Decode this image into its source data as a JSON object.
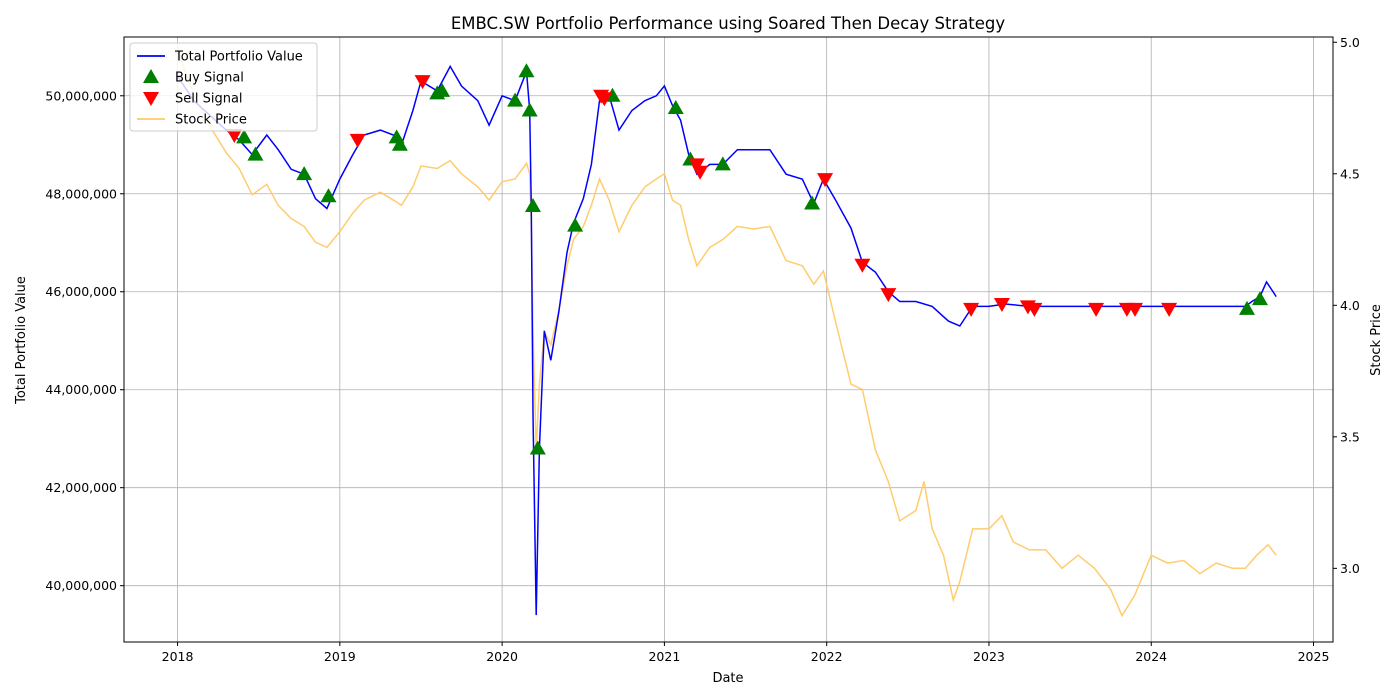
{
  "chart_data": {
    "type": "line",
    "title": "EMBC.SW Portfolio Performance using Soared Then Decay Strategy",
    "xlabel": "Date",
    "ylabel": "Total Portfolio Value",
    "ylabel_right": "Stock Price",
    "grid": true,
    "legend_position": "top-left",
    "xlim": [
      2017.67,
      2025.12
    ],
    "ylim": [
      38850000,
      51200000
    ],
    "ylim_right": [
      2.72,
      5.02
    ],
    "x_ticks": [
      2018,
      2019,
      2020,
      2021,
      2022,
      2023,
      2024,
      2025
    ],
    "x_tick_labels": [
      "2018",
      "2019",
      "2020",
      "2021",
      "2022",
      "2023",
      "2024",
      "2025"
    ],
    "y_ticks": [
      40000000,
      42000000,
      44000000,
      46000000,
      48000000,
      50000000
    ],
    "y_tick_labels": [
      "40,000,000",
      "42,000,000",
      "44,000,000",
      "46,000,000",
      "48,000,000",
      "50,000,000"
    ],
    "y_right_ticks": [
      3.0,
      3.5,
      4.0,
      4.5,
      5.0
    ],
    "y_right_tick_labels": [
      "3.0",
      "3.5",
      "4.0",
      "4.5",
      "5.0"
    ],
    "series": [
      {
        "name": "Total Portfolio Value",
        "color": "#0000ff",
        "axis": "left",
        "points": [
          [
            2018.0,
            50400000
          ],
          [
            2018.1,
            49900000
          ],
          [
            2018.2,
            49600000
          ],
          [
            2018.3,
            49300000
          ],
          [
            2018.38,
            49100000
          ],
          [
            2018.46,
            48800000
          ],
          [
            2018.55,
            49200000
          ],
          [
            2018.62,
            48900000
          ],
          [
            2018.7,
            48500000
          ],
          [
            2018.78,
            48400000
          ],
          [
            2018.85,
            47900000
          ],
          [
            2018.92,
            47700000
          ],
          [
            2019.0,
            48300000
          ],
          [
            2019.08,
            48800000
          ],
          [
            2019.15,
            49200000
          ],
          [
            2019.25,
            49300000
          ],
          [
            2019.33,
            49200000
          ],
          [
            2019.38,
            49000000
          ],
          [
            2019.45,
            49700000
          ],
          [
            2019.5,
            50300000
          ],
          [
            2019.6,
            50100000
          ],
          [
            2019.68,
            50600000
          ],
          [
            2019.75,
            50200000
          ],
          [
            2019.85,
            49900000
          ],
          [
            2019.92,
            49400000
          ],
          [
            2020.0,
            50000000
          ],
          [
            2020.08,
            49900000
          ],
          [
            2020.15,
            50500000
          ],
          [
            2020.17,
            49700000
          ],
          [
            2020.18,
            47700000
          ],
          [
            2020.19,
            43500000
          ],
          [
            2020.21,
            39400000
          ],
          [
            2020.23,
            42800000
          ],
          [
            2020.26,
            45200000
          ],
          [
            2020.3,
            44600000
          ],
          [
            2020.35,
            45600000
          ],
          [
            2020.4,
            46800000
          ],
          [
            2020.44,
            47400000
          ],
          [
            2020.5,
            47900000
          ],
          [
            2020.55,
            48600000
          ],
          [
            2020.6,
            49900000
          ],
          [
            2020.66,
            50000000
          ],
          [
            2020.72,
            49300000
          ],
          [
            2020.8,
            49700000
          ],
          [
            2020.88,
            49900000
          ],
          [
            2020.95,
            50000000
          ],
          [
            2021.0,
            50200000
          ],
          [
            2021.05,
            49800000
          ],
          [
            2021.1,
            49500000
          ],
          [
            2021.15,
            48800000
          ],
          [
            2021.2,
            48400000
          ],
          [
            2021.28,
            48600000
          ],
          [
            2021.36,
            48600000
          ],
          [
            2021.45,
            48900000
          ],
          [
            2021.55,
            48900000
          ],
          [
            2021.65,
            48900000
          ],
          [
            2021.75,
            48400000
          ],
          [
            2021.85,
            48300000
          ],
          [
            2021.92,
            47800000
          ],
          [
            2021.98,
            48300000
          ],
          [
            2022.05,
            47900000
          ],
          [
            2022.15,
            47300000
          ],
          [
            2022.22,
            46600000
          ],
          [
            2022.3,
            46400000
          ],
          [
            2022.38,
            46000000
          ],
          [
            2022.45,
            45800000
          ],
          [
            2022.55,
            45800000
          ],
          [
            2022.65,
            45700000
          ],
          [
            2022.75,
            45400000
          ],
          [
            2022.82,
            45300000
          ],
          [
            2022.9,
            45700000
          ],
          [
            2023.0,
            45700000
          ],
          [
            2023.1,
            45750000
          ],
          [
            2023.25,
            45700000
          ],
          [
            2023.5,
            45700000
          ],
          [
            2023.75,
            45700000
          ],
          [
            2024.0,
            45700000
          ],
          [
            2024.25,
            45700000
          ],
          [
            2024.5,
            45700000
          ],
          [
            2024.58,
            45700000
          ],
          [
            2024.62,
            45800000
          ],
          [
            2024.67,
            45900000
          ],
          [
            2024.71,
            46200000
          ],
          [
            2024.75,
            46000000
          ],
          [
            2024.77,
            45900000
          ]
        ]
      },
      {
        "name": "Stock Price",
        "color": "#ffc966",
        "axis": "right",
        "points": [
          [
            2018.0,
            4.97
          ],
          [
            2018.1,
            4.8
          ],
          [
            2018.2,
            4.68
          ],
          [
            2018.3,
            4.58
          ],
          [
            2018.38,
            4.52
          ],
          [
            2018.46,
            4.42
          ],
          [
            2018.55,
            4.46
          ],
          [
            2018.62,
            4.38
          ],
          [
            2018.7,
            4.33
          ],
          [
            2018.78,
            4.3
          ],
          [
            2018.85,
            4.24
          ],
          [
            2018.92,
            4.22
          ],
          [
            2019.0,
            4.28
          ],
          [
            2019.08,
            4.35
          ],
          [
            2019.15,
            4.4
          ],
          [
            2019.25,
            4.43
          ],
          [
            2019.33,
            4.4
          ],
          [
            2019.38,
            4.38
          ],
          [
            2019.45,
            4.45
          ],
          [
            2019.5,
            4.53
          ],
          [
            2019.6,
            4.52
          ],
          [
            2019.68,
            4.55
          ],
          [
            2019.75,
            4.5
          ],
          [
            2019.85,
            4.45
          ],
          [
            2019.92,
            4.4
          ],
          [
            2020.0,
            4.47
          ],
          [
            2020.08,
            4.48
          ],
          [
            2020.15,
            4.54
          ],
          [
            2020.17,
            4.5
          ],
          [
            2020.18,
            4.3
          ],
          [
            2020.19,
            3.9
          ],
          [
            2020.21,
            3.45
          ],
          [
            2020.23,
            3.7
          ],
          [
            2020.26,
            3.9
          ],
          [
            2020.3,
            3.85
          ],
          [
            2020.35,
            3.98
          ],
          [
            2020.4,
            4.15
          ],
          [
            2020.44,
            4.25
          ],
          [
            2020.5,
            4.3
          ],
          [
            2020.55,
            4.38
          ],
          [
            2020.6,
            4.48
          ],
          [
            2020.66,
            4.4
          ],
          [
            2020.72,
            4.28
          ],
          [
            2020.8,
            4.38
          ],
          [
            2020.88,
            4.45
          ],
          [
            2020.95,
            4.48
          ],
          [
            2021.0,
            4.5
          ],
          [
            2021.05,
            4.4
          ],
          [
            2021.1,
            4.38
          ],
          [
            2021.15,
            4.25
          ],
          [
            2021.2,
            4.15
          ],
          [
            2021.28,
            4.22
          ],
          [
            2021.36,
            4.25
          ],
          [
            2021.45,
            4.3
          ],
          [
            2021.55,
            4.29
          ],
          [
            2021.65,
            4.3
          ],
          [
            2021.75,
            4.17
          ],
          [
            2021.85,
            4.15
          ],
          [
            2021.92,
            4.08
          ],
          [
            2021.98,
            4.13
          ],
          [
            2022.05,
            3.95
          ],
          [
            2022.15,
            3.7
          ],
          [
            2022.22,
            3.68
          ],
          [
            2022.3,
            3.45
          ],
          [
            2022.38,
            3.33
          ],
          [
            2022.45,
            3.18
          ],
          [
            2022.55,
            3.22
          ],
          [
            2022.6,
            3.33
          ],
          [
            2022.65,
            3.15
          ],
          [
            2022.72,
            3.05
          ],
          [
            2022.78,
            2.88
          ],
          [
            2022.82,
            2.95
          ],
          [
            2022.9,
            3.15
          ],
          [
            2023.0,
            3.15
          ],
          [
            2023.08,
            3.2
          ],
          [
            2023.15,
            3.1
          ],
          [
            2023.25,
            3.07
          ],
          [
            2023.35,
            3.07
          ],
          [
            2023.45,
            3.0
          ],
          [
            2023.55,
            3.05
          ],
          [
            2023.65,
            3.0
          ],
          [
            2023.75,
            2.92
          ],
          [
            2023.82,
            2.82
          ],
          [
            2023.9,
            2.9
          ],
          [
            2024.0,
            3.05
          ],
          [
            2024.1,
            3.02
          ],
          [
            2024.2,
            3.03
          ],
          [
            2024.3,
            2.98
          ],
          [
            2024.4,
            3.02
          ],
          [
            2024.5,
            3.0
          ],
          [
            2024.58,
            3.0
          ],
          [
            2024.65,
            3.05
          ],
          [
            2024.72,
            3.09
          ],
          [
            2024.77,
            3.05
          ]
        ]
      }
    ],
    "buy_signals": {
      "name": "Buy Signal",
      "color": "#008000",
      "marker": "triangle-up",
      "points": [
        [
          2018.41,
          49150000
        ],
        [
          2018.48,
          48800000
        ],
        [
          2018.78,
          48400000
        ],
        [
          2018.93,
          47950000
        ],
        [
          2019.35,
          49150000
        ],
        [
          2019.37,
          49000000
        ],
        [
          2019.6,
          50050000
        ],
        [
          2019.63,
          50100000
        ],
        [
          2020.08,
          49900000
        ],
        [
          2020.15,
          50500000
        ],
        [
          2020.17,
          49700000
        ],
        [
          2020.19,
          47750000
        ],
        [
          2020.22,
          42800000
        ],
        [
          2020.45,
          47350000
        ],
        [
          2020.68,
          50000000
        ],
        [
          2021.07,
          49750000
        ],
        [
          2021.16,
          48700000
        ],
        [
          2021.36,
          48600000
        ],
        [
          2021.91,
          47800000
        ],
        [
          2024.59,
          45650000
        ],
        [
          2024.67,
          45850000
        ]
      ]
    },
    "sell_signals": {
      "name": "Sell Signal",
      "color": "#ff0000",
      "marker": "triangle-down",
      "points": [
        [
          2018.35,
          49200000
        ],
        [
          2019.11,
          49100000
        ],
        [
          2019.51,
          50300000
        ],
        [
          2020.61,
          50000000
        ],
        [
          2020.63,
          49950000
        ],
        [
          2021.2,
          48600000
        ],
        [
          2021.22,
          48450000
        ],
        [
          2021.99,
          48300000
        ],
        [
          2022.22,
          46550000
        ],
        [
          2022.38,
          45950000
        ],
        [
          2022.89,
          45650000
        ],
        [
          2023.08,
          45750000
        ],
        [
          2023.24,
          45700000
        ],
        [
          2023.28,
          45650000
        ],
        [
          2023.66,
          45650000
        ],
        [
          2023.85,
          45650000
        ],
        [
          2023.9,
          45650000
        ],
        [
          2024.11,
          45650000
        ]
      ]
    },
    "legend": [
      "Total Portfolio Value",
      "Buy Signal",
      "Sell Signal",
      "Stock Price"
    ]
  }
}
